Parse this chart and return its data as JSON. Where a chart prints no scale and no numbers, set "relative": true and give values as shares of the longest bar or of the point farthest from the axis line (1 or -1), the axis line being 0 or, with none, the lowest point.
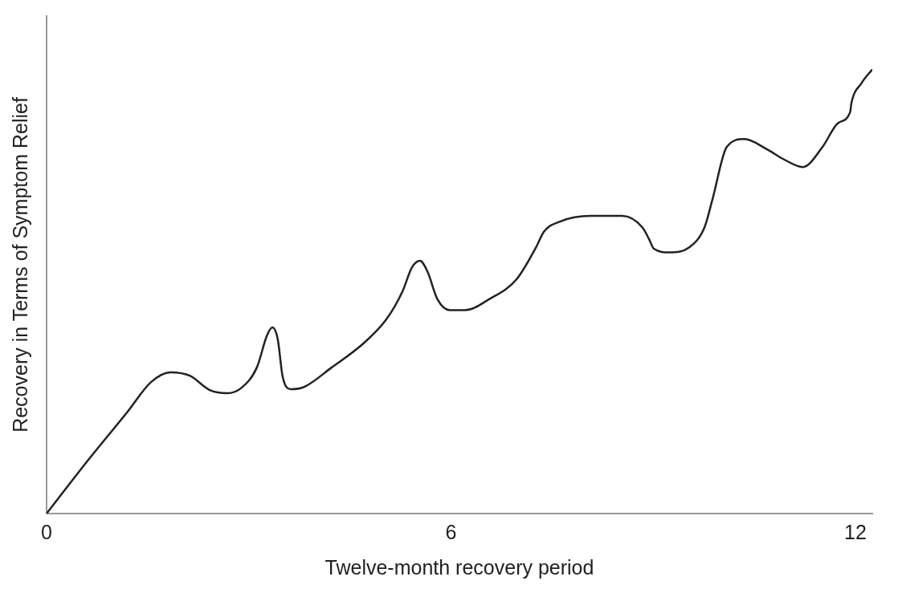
{
  "chart_data": {
    "type": "line",
    "xlabel": "Twelve-month recovery period",
    "ylabel": "Recovery in Terms of Symptom Relief",
    "relative": true,
    "xlim": [
      0,
      12.25
    ],
    "xticks": [
      0,
      6,
      12
    ],
    "grid": false,
    "legend": false,
    "marker": "none",
    "line_style": "solid",
    "series": [
      {
        "color": "#222222",
        "x": [
          0,
          0.62,
          1.2,
          1.55,
          1.84,
          2.13,
          2.42,
          2.68,
          2.89,
          3.12,
          3.27,
          3.35,
          3.43,
          3.5,
          3.62,
          3.82,
          4.23,
          4.7,
          5.04,
          5.28,
          5.42,
          5.54,
          5.65,
          5.8,
          5.98,
          6.21,
          6.56,
          6.97,
          7.26,
          7.38,
          7.61,
          8.07,
          8.54,
          8.84,
          8.94,
          9.01,
          9.24,
          9.53,
          9.76,
          9.88,
          10.09,
          10.35,
          10.7,
          10.93,
          11.22,
          11.51,
          11.74,
          11.92,
          11.94,
          12.09,
          12.25
        ],
        "values": [
          0,
          0.121,
          0.229,
          0.296,
          0.318,
          0.31,
          0.278,
          0.271,
          0.283,
          0.329,
          0.401,
          0.419,
          0.392,
          0.31,
          0.28,
          0.285,
          0.329,
          0.383,
          0.437,
          0.5,
          0.554,
          0.569,
          0.545,
          0.482,
          0.458,
          0.458,
          0.482,
          0.527,
          0.599,
          0.635,
          0.657,
          0.67,
          0.67,
          0.644,
          0.617,
          0.596,
          0.588,
          0.599,
          0.644,
          0.708,
          0.825,
          0.843,
          0.819,
          0.798,
          0.78,
          0.825,
          0.879,
          0.903,
          0.924,
          0.969,
          1
        ]
      }
    ]
  }
}
